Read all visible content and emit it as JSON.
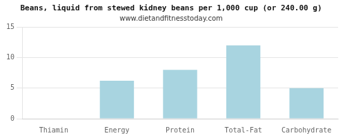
{
  "chart_data": {
    "type": "bar",
    "title": "Beans, liquid from stewed kidney beans per 1,000 cup (or 240.00 g)",
    "subtitle": "www.dietandfitnesstoday.com",
    "categories": [
      "Thiamin",
      "Energy",
      "Protein",
      "Total-Fat",
      "Carbohydrate"
    ],
    "values": [
      0,
      6.2,
      8.0,
      12.0,
      5.0
    ],
    "color": "#a8d4e0",
    "ylim": [
      0,
      15
    ],
    "yticks": [
      0,
      5,
      10,
      15
    ],
    "grid": true
  }
}
